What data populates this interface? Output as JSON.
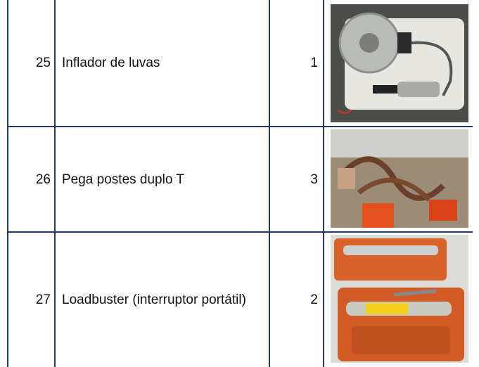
{
  "table": {
    "rows": [
      [
        25,
        "Inflador de luvas",
        1
      ],
      [
        26,
        "Pega postes duplo T",
        3
      ],
      [
        27,
        "Loadbuster (interruptor portátil)",
        2
      ]
    ]
  }
}
